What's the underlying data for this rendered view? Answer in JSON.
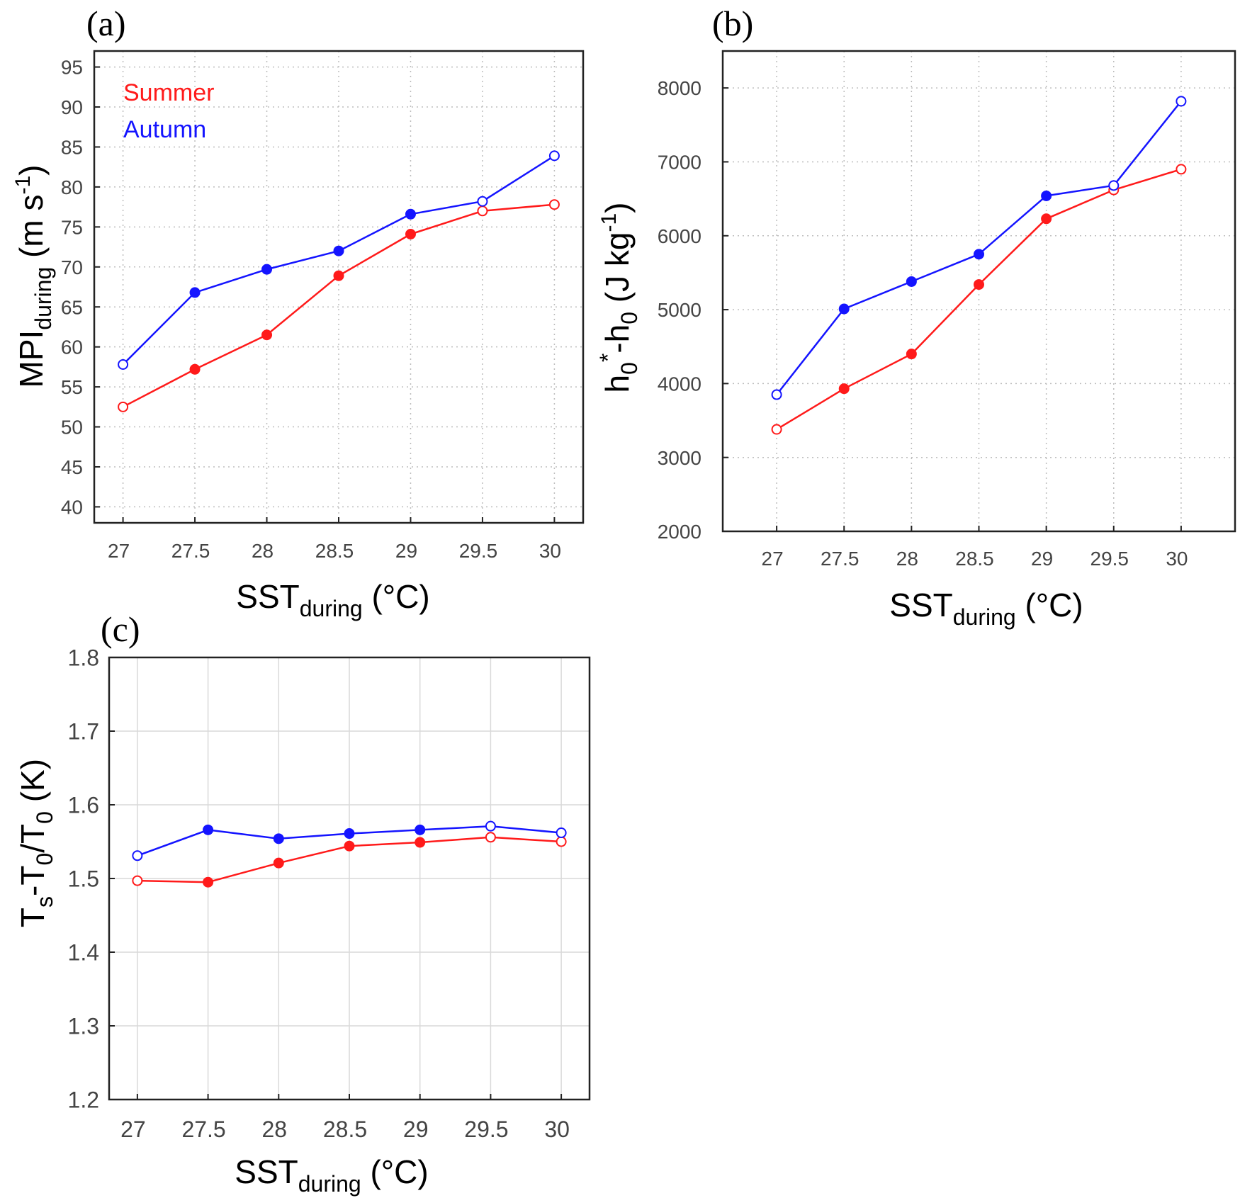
{
  "colors": {
    "summer": "#ff1a1a",
    "autumn": "#1414ff",
    "axis": "#222222",
    "grid": "#d4d4d4",
    "tick": "#444444"
  },
  "chart_data": [
    {
      "id": "a",
      "type": "line",
      "panel_label": "(a)",
      "xlabel_main": "SST",
      "xlabel_sub": "during",
      "xlabel_unit": " (°C)",
      "ylabel_main": "MPI",
      "ylabel_sub": "during",
      "ylabel_unit": " (m s",
      "ylabel_sup": "-1",
      "ylabel_close": ")",
      "xlim": [
        26.8,
        30.2
      ],
      "ylim": [
        38,
        97
      ],
      "xticks": [
        27,
        27.5,
        28,
        28.5,
        29,
        29.5,
        30
      ],
      "xtick_labels": [
        "27",
        "27.5",
        "28",
        "28.5",
        "29",
        "29.5",
        "30"
      ],
      "yticks": [
        40,
        45,
        50,
        55,
        60,
        65,
        70,
        75,
        80,
        85,
        90,
        95
      ],
      "ytick_labels": [
        "40",
        "45",
        "50",
        "55",
        "60",
        "65",
        "70",
        "75",
        "80",
        "85",
        "90",
        "95"
      ],
      "grid": "dotted",
      "legend": {
        "position": "top-left",
        "entries": [
          "Summer",
          "Autumn"
        ]
      },
      "x": [
        27,
        27.5,
        28,
        28.5,
        29,
        29.5,
        30
      ],
      "series": [
        {
          "name": "Summer",
          "values": [
            52.5,
            57.2,
            61.5,
            68.9,
            74.1,
            77.0,
            77.8
          ],
          "filled": [
            false,
            true,
            true,
            true,
            true,
            false,
            false
          ]
        },
        {
          "name": "Autumn",
          "values": [
            57.8,
            66.8,
            69.7,
            72.0,
            76.6,
            78.2,
            83.9
          ],
          "filled": [
            false,
            true,
            true,
            true,
            true,
            false,
            false
          ]
        }
      ]
    },
    {
      "id": "b",
      "type": "line",
      "panel_label": "(b)",
      "xlabel_main": "SST",
      "xlabel_sub": "during",
      "xlabel_unit": " (°C)",
      "ylabel_main": "h",
      "ylabel_sub": "0",
      "ylabel_sup2": "*",
      "ylabel_mid": "-h",
      "ylabel_sub2": "0",
      "ylabel_unit": " (J kg",
      "ylabel_sup": "-1",
      "ylabel_close": ")",
      "xlim": [
        26.6,
        30.4
      ],
      "ylim": [
        2000,
        8500
      ],
      "xticks": [
        27,
        27.5,
        28,
        28.5,
        29,
        29.5,
        30
      ],
      "xtick_labels": [
        "27",
        "27.5",
        "28",
        "28.5",
        "29",
        "29.5",
        "30"
      ],
      "yticks": [
        2000,
        3000,
        4000,
        5000,
        6000,
        7000,
        8000
      ],
      "ytick_labels": [
        "2000",
        "3000",
        "4000",
        "5000",
        "6000",
        "7000",
        "8000"
      ],
      "grid": "dotted",
      "x": [
        27,
        27.5,
        28,
        28.5,
        29,
        29.5,
        30
      ],
      "series": [
        {
          "name": "Summer",
          "values": [
            3380,
            3930,
            4400,
            5340,
            6230,
            6620,
            6900
          ],
          "filled": [
            false,
            true,
            true,
            true,
            true,
            false,
            false
          ]
        },
        {
          "name": "Autumn",
          "values": [
            3850,
            5010,
            5380,
            5750,
            6540,
            6680,
            7820
          ],
          "filled": [
            false,
            true,
            true,
            true,
            true,
            false,
            false
          ]
        }
      ]
    },
    {
      "id": "c",
      "type": "line",
      "panel_label": "(c)",
      "xlabel_main": "SST",
      "xlabel_sub": "during",
      "xlabel_unit": " (°C)",
      "ylabel_main": "T",
      "ylabel_sub": "s",
      "ylabel_mid": "-T",
      "ylabel_sub2": "0",
      "ylabel_mid2": "/T",
      "ylabel_sub3": "0",
      "ylabel_unit": " (K)",
      "xlim": [
        26.8,
        30.2
      ],
      "ylim": [
        1.2,
        1.8
      ],
      "xticks": [
        27,
        27.5,
        28,
        28.5,
        29,
        29.5,
        30
      ],
      "xtick_labels": [
        "27",
        "27.5",
        "28",
        "28.5",
        "29",
        "29.5",
        "30"
      ],
      "yticks": [
        1.2,
        1.3,
        1.4,
        1.5,
        1.6,
        1.7,
        1.8
      ],
      "ytick_labels": [
        "1.2",
        "1.3",
        "1.4",
        "1.5",
        "1.6",
        "1.7",
        "1.8"
      ],
      "grid": "solid",
      "x": [
        27,
        27.5,
        28,
        28.5,
        29,
        29.5,
        30
      ],
      "series": [
        {
          "name": "Summer",
          "values": [
            1.497,
            1.495,
            1.521,
            1.544,
            1.549,
            1.556,
            1.55
          ],
          "filled": [
            false,
            true,
            true,
            true,
            true,
            false,
            false
          ]
        },
        {
          "name": "Autumn",
          "values": [
            1.531,
            1.566,
            1.554,
            1.561,
            1.566,
            1.571,
            1.562
          ],
          "filled": [
            false,
            true,
            true,
            true,
            true,
            false,
            false
          ]
        }
      ]
    }
  ]
}
